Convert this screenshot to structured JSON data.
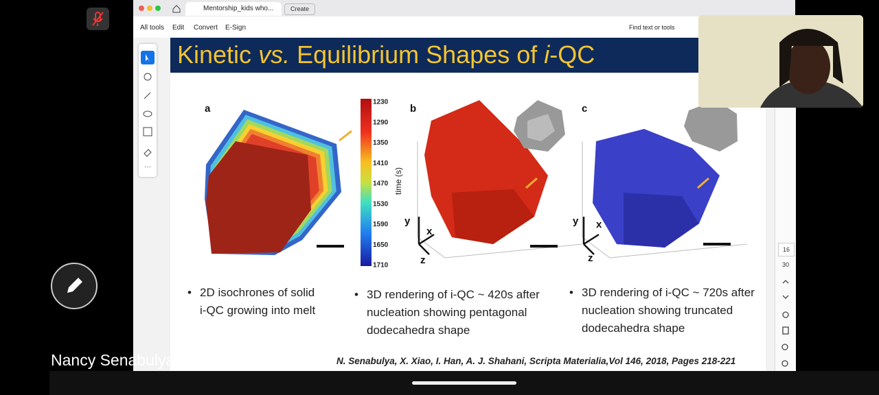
{
  "meeting": {
    "participant_name": "Nancy Senabulya"
  },
  "browser": {
    "tab_title": "Mentorship_kids who...",
    "new_tab": "Create"
  },
  "toolbar": {
    "items": [
      "All tools",
      "Edit",
      "Convert",
      "E-Sign"
    ],
    "search": "Find text or tools"
  },
  "slide": {
    "title_parts": [
      "Kinetic ",
      "vs.",
      " Equilibrium Shapes of ",
      "i",
      "-QC"
    ],
    "panels": [
      "a",
      "b",
      "c"
    ],
    "colorbar": {
      "ticks": [
        1230,
        1290,
        1350,
        1410,
        1470,
        1530,
        1590,
        1650,
        1710
      ],
      "label": "time (s)"
    },
    "axes": [
      "y",
      "x",
      "z"
    ],
    "bullets": [
      [
        "2D isochrones of solid",
        "i-QC growing into melt"
      ],
      [
        "3D rendering of i-QC ~ 420s after",
        "nucleation showing pentagonal",
        "dodecahedra shape"
      ],
      [
        "3D rendering of i-QC ~ 720s after",
        "nucleation showing truncated",
        "dodecahedra shape"
      ]
    ],
    "citation": "N. Senabulya, X. Xiao, I. Han, A. J. Shahani, Scripta Materialia,Vol 146, 2018, Pages 218-221"
  },
  "sidebar": {
    "page_numbers": [
      "16",
      "30"
    ]
  }
}
